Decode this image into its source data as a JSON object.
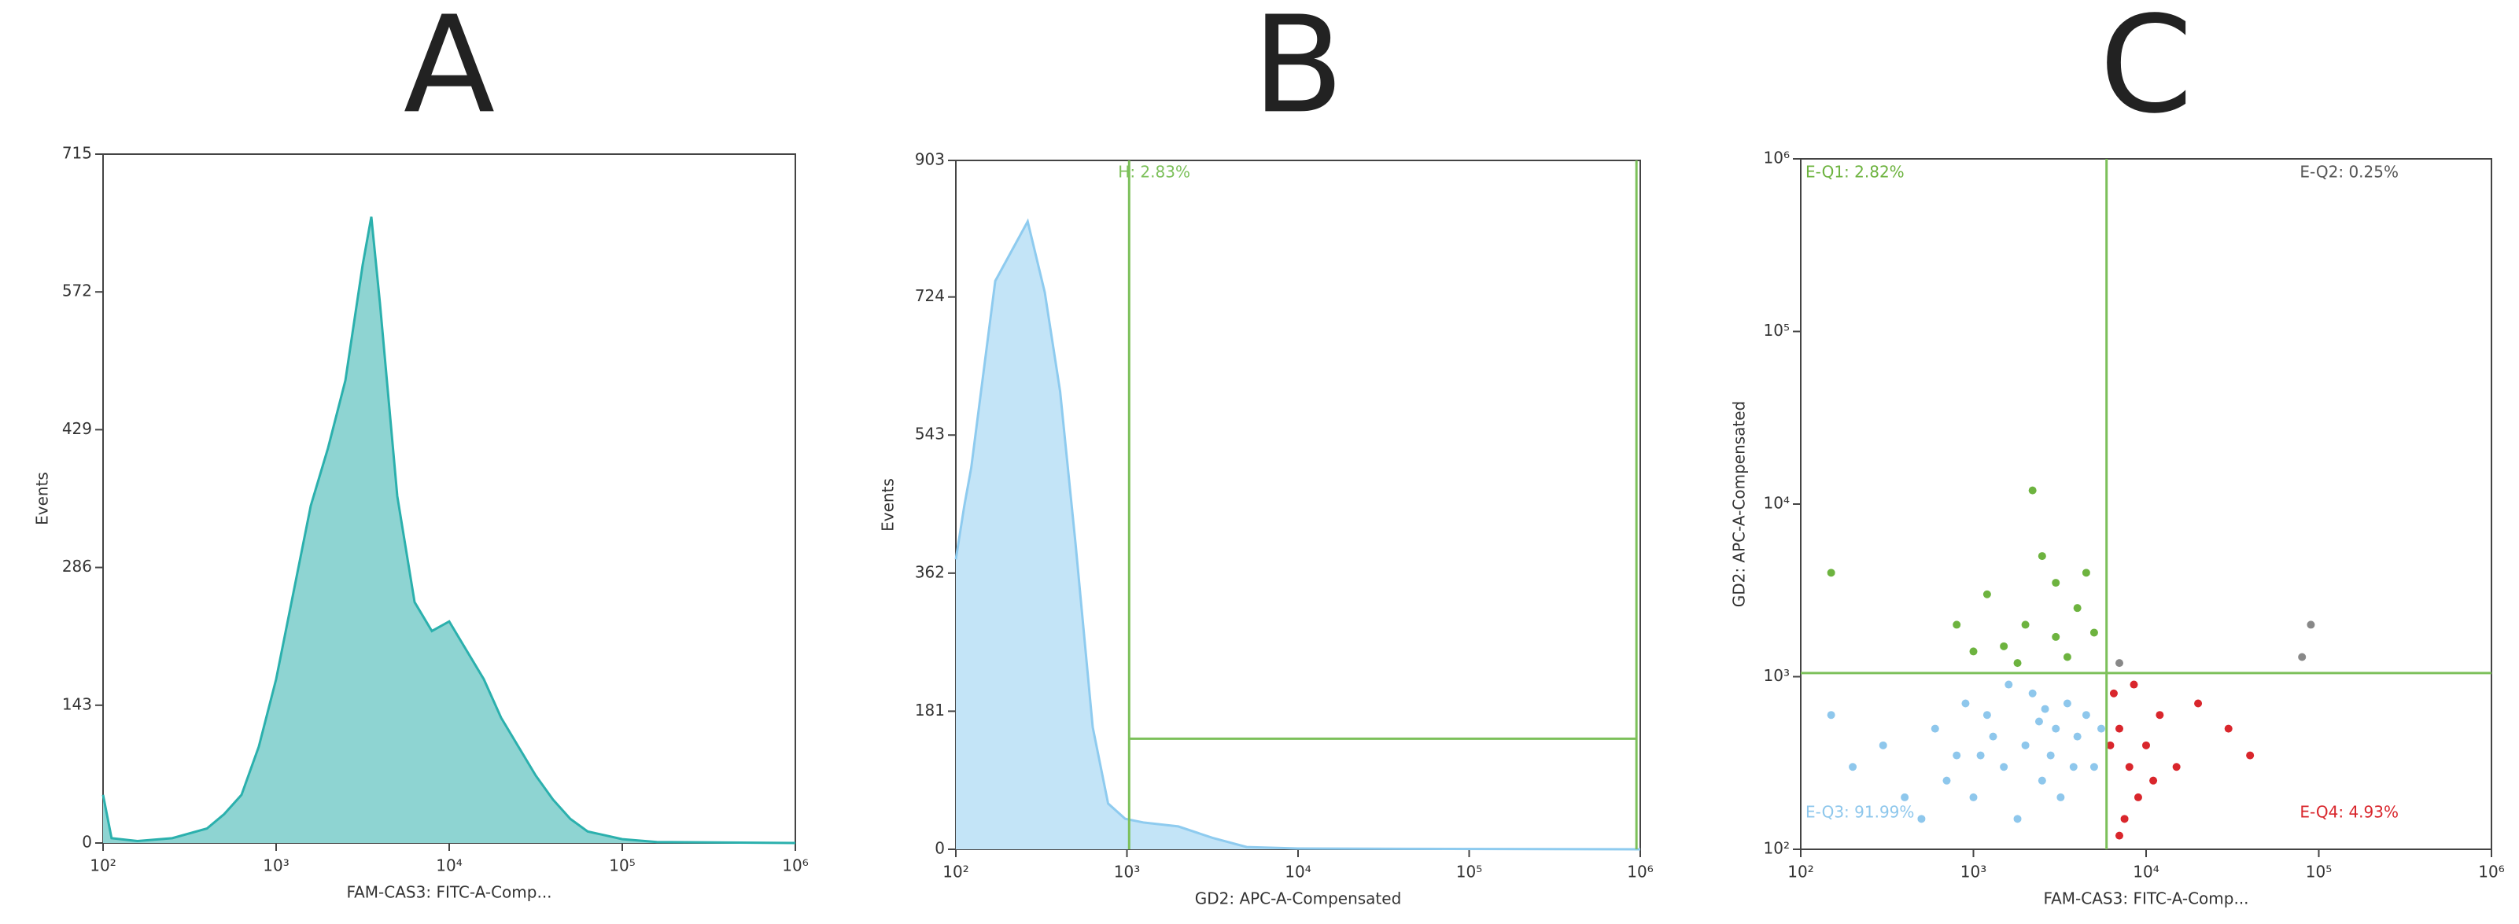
{
  "chart_data": [
    {
      "panel_label": "A",
      "type": "area",
      "xscale": "log",
      "xlabel": "FAM-CAS3: FITC-A-Comp...",
      "ylabel": "Events",
      "x": [
        100,
        112,
        158,
        251,
        398,
        501,
        631,
        794,
        1000,
        1259,
        1585,
        1995,
        2512,
        3162,
        3548,
        3981,
        5012,
        6310,
        7943,
        10000,
        12589,
        15849,
        19953,
        25119,
        31623,
        39811,
        50119,
        63096,
        100000,
        158489,
        1000000
      ],
      "values": [
        50,
        5,
        2,
        5,
        15,
        30,
        50,
        100,
        170,
        260,
        350,
        410,
        480,
        600,
        650,
        560,
        360,
        250,
        220,
        230,
        200,
        170,
        130,
        100,
        70,
        45,
        25,
        12,
        4,
        1,
        0
      ],
      "color": "#2bb0ad",
      "fill": "#8ed4d2",
      "xlim": [
        100,
        1000000
      ],
      "xticks": [
        {
          "value": 100,
          "label": "10²"
        },
        {
          "value": 1000,
          "label": "10³"
        },
        {
          "value": 10000,
          "label": "10⁴"
        },
        {
          "value": 100000,
          "label": "10⁵"
        },
        {
          "value": 1000000,
          "label": "10⁶"
        }
      ],
      "ylim": [
        0,
        715
      ],
      "yticks": [
        0,
        143,
        286,
        429,
        572,
        715
      ]
    },
    {
      "panel_label": "B",
      "type": "area",
      "xscale": "log",
      "xlabel": "GD2: APC-A-Compensated",
      "ylabel": "Events",
      "x": [
        100,
        112,
        123,
        170,
        263,
        331,
        407,
        501,
        631,
        776,
        977,
        1259,
        1995,
        3162,
        5012,
        10000,
        1000000
      ],
      "values": [
        380,
        450,
        500,
        745,
        823,
        730,
        600,
        400,
        160,
        60,
        40,
        35,
        30,
        15,
        3,
        1,
        0
      ],
      "color": "#8ecbef",
      "fill": "#c3e4f7",
      "xlim": [
        100,
        1000000
      ],
      "xticks": [
        {
          "value": 100,
          "label": "10²"
        },
        {
          "value": 1000,
          "label": "10³"
        },
        {
          "value": 10000,
          "label": "10⁴"
        },
        {
          "value": 100000,
          "label": "10⁵"
        },
        {
          "value": 1000000,
          "label": "10⁶"
        }
      ],
      "ylim": [
        0,
        903
      ],
      "yticks": [
        0,
        181,
        362,
        543,
        724,
        903
      ],
      "gate": {
        "label": "H: 2.83%",
        "x": [
          1030,
          950000
        ],
        "y": 145,
        "color": "#7cc05a"
      }
    },
    {
      "panel_label": "C",
      "type": "scatter",
      "xscale": "log",
      "yscale": "log",
      "xlabel": "FAM-CAS3: FITC-A-Comp...",
      "ylabel": "GD2: APC-A-Compensated",
      "xlim": [
        100,
        1000000
      ],
      "ylim": [
        100,
        1000000
      ],
      "xticks": [
        {
          "value": 100,
          "label": "10²"
        },
        {
          "value": 1000,
          "label": "10³"
        },
        {
          "value": 10000,
          "label": "10⁴"
        },
        {
          "value": 100000,
          "label": "10⁵"
        },
        {
          "value": 1000000,
          "label": "10⁶"
        }
      ],
      "yticks": [
        {
          "value": 100,
          "label": "10²"
        },
        {
          "value": 1000,
          "label": "10³"
        },
        {
          "value": 10000,
          "label": "10⁴"
        },
        {
          "value": 100000,
          "label": "10⁵"
        },
        {
          "value": 1000000,
          "label": "10⁶"
        }
      ],
      "series": [
        {
          "color": "#8ec7ec",
          "x": [
            2000,
            1500,
            3000,
            1200,
            800,
            2500,
            4000,
            1000,
            3500,
            600,
            2200,
            5000,
            300,
            1800,
            4500,
            700,
            2800,
            1300,
            200,
            3200,
            900,
            5500,
            400,
            2400,
            1600,
            150,
            3800,
            1100,
            2600,
            500
          ],
          "values": [
            400,
            300,
            500,
            600,
            350,
            250,
            450,
            200,
            700,
            500,
            800,
            300,
            400,
            150,
            600,
            250,
            350,
            450,
            300,
            200,
            700,
            500,
            200,
            550,
            900,
            600,
            300,
            350,
            650,
            150
          ]
        },
        {
          "color": "#6db33f",
          "x": [
            2000,
            3000,
            1500,
            4000,
            2500,
            1200,
            3500,
            5000,
            800,
            2200,
            1800,
            4500,
            1000,
            3000,
            150
          ],
          "values": [
            2000,
            3500,
            1500,
            2500,
            5000,
            3000,
            1300,
            1800,
            2000,
            12000,
            1200,
            4000,
            1400,
            1700,
            4000
          ]
        },
        {
          "color": "#d9262c",
          "x": [
            7000,
            8000,
            6500,
            10000,
            9000,
            12000,
            7500,
            15000,
            20000,
            6200,
            8500,
            11000,
            30000,
            7000,
            40000
          ],
          "values": [
            500,
            300,
            800,
            400,
            200,
            600,
            150,
            300,
            700,
            400,
            900,
            250,
            500,
            120,
            350
          ]
        },
        {
          "color": "#888888",
          "x": [
            7000,
            80000,
            90000
          ],
          "values": [
            1200,
            1300,
            2000
          ]
        }
      ],
      "quadrants": {
        "x": 5900,
        "y": 1050,
        "color": "#7cc05a",
        "labels": [
          {
            "text": "E-Q1: 2.82%",
            "color": "#6db33f"
          },
          {
            "text": "E-Q2: 0.25%",
            "color": "#555555"
          },
          {
            "text": "E-Q3: 91.99%",
            "color": "#8ec7ec"
          },
          {
            "text": "E-Q4: 4.93%",
            "color": "#d9262c"
          }
        ]
      }
    }
  ]
}
